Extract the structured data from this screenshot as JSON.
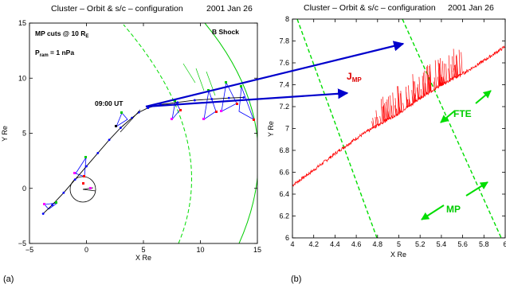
{
  "panel_a": {
    "title": "Cluster   – Orbit & s/c – configuration",
    "date": "2001  Jan  26",
    "xlabel": "X Re",
    "ylabel": "Y Re",
    "xticks": [
      "−5",
      "0",
      "5",
      "10",
      "15"
    ],
    "yticks": [
      "15",
      "10",
      "5",
      "0",
      "−5"
    ],
    "mp_cuts_text": "MP cuts @ 10 R",
    "mp_cuts_sub": "E",
    "pram_text": "P",
    "pram_sub": "ram",
    "pram_value": " = 1 nPa",
    "bshock_text": "B Shock",
    "time_label": "09:00  UT",
    "panel_tag": "(a)"
  },
  "panel_b": {
    "title": "Cluster   – Orbit & s/c – configuration",
    "date": "2001  Jan  26",
    "xlabel": "X Re",
    "ylabel": "Y Re",
    "xticks": [
      "4",
      "4.2",
      "4.4",
      "4.6",
      "4.8",
      "5",
      "5.2",
      "5.4",
      "5.6",
      "5.8",
      "6"
    ],
    "yticks": [
      "8",
      "7.8",
      "7.6",
      "7.4",
      "7.2",
      "7",
      "6.8",
      "6.6",
      "6.4",
      "6.2",
      "6"
    ],
    "jmp_text": "J",
    "jmp_sub": "MP",
    "fte_label": "FTE",
    "mp_label": "MP",
    "panel_tag": "(b)"
  },
  "colors": {
    "orbit": "#000000",
    "tetra": "#0000ff",
    "mp_cut": "#00cc00",
    "dashed_mp": "#00dd00",
    "arrow": "#0000cc",
    "current": "#ff0000",
    "spacecraft": [
      "#ff00ff",
      "#000000",
      "#ff0000",
      "#00cc00"
    ]
  },
  "chart_data": [
    {
      "type": "line",
      "title": "Cluster   – Orbit & s/c – configuration",
      "xlabel": "X Re",
      "ylabel": "Y Re",
      "xlim": [
        -5,
        15
      ],
      "ylim": [
        -5,
        15
      ],
      "series": [
        {
          "x": [
            -3.8,
            -3.0,
            -2.0,
            -1.0,
            0.0,
            1.0,
            2.0,
            3.0,
            4.0,
            4.6,
            5.4,
            6.5,
            8.0,
            9.5,
            11.0,
            12.5,
            13.8
          ],
          "y": [
            -2.3,
            -1.5,
            -0.4,
            0.8,
            2.0,
            3.2,
            4.4,
            5.5,
            6.4,
            6.9,
            7.3,
            7.6,
            7.8,
            8.0,
            8.1,
            8.2,
            8.25
          ]
        }
      ]
    },
    {
      "type": "line",
      "title": "Cluster   – Orbit & s/c – configuration",
      "xlabel": "X Re",
      "ylabel": "Y Re",
      "xlim": [
        4,
        6
      ],
      "ylim": [
        6,
        8
      ],
      "series": [
        {
          "name": "MP",
          "x": [
            4.0,
            4.2,
            4.4,
            4.6,
            4.8,
            5.0,
            5.2,
            5.4,
            5.6,
            5.8,
            6.0
          ],
          "y": [
            6.48,
            6.62,
            6.77,
            6.91,
            7.03,
            7.14,
            7.28,
            7.4,
            7.5,
            7.62,
            7.75
          ]
        }
      ]
    }
  ]
}
